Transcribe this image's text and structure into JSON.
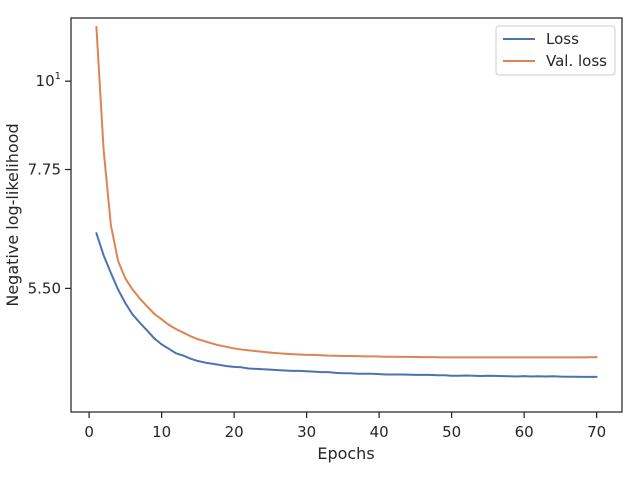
{
  "chart_data": {
    "type": "line",
    "xlabel": "Epochs",
    "ylabel": "Negative log-likelihood",
    "x_ticks": [
      0,
      10,
      20,
      30,
      40,
      50,
      60,
      70
    ],
    "x_tick_labels": [
      "0",
      "10",
      "20",
      "30",
      "40",
      "50",
      "60",
      "70"
    ],
    "xlim": [
      -2.5,
      73.5
    ],
    "yscale": "log",
    "ylim": [
      3.85,
      12.0
    ],
    "y_ticks": [
      5.5,
      7.75,
      10
    ],
    "y_tick_labels": [
      "5.50",
      "7.75",
      "10"
    ],
    "y_tick_sup": [
      "",
      "",
      "1"
    ],
    "grid": false,
    "legend_position": "top-right",
    "legend_entries": [
      "Loss",
      "Val. loss"
    ],
    "x": [
      1,
      2,
      3,
      4,
      5,
      6,
      7,
      8,
      9,
      10,
      11,
      12,
      13,
      14,
      15,
      16,
      17,
      18,
      19,
      20,
      21,
      22,
      23,
      24,
      25,
      26,
      27,
      28,
      29,
      30,
      31,
      32,
      33,
      34,
      35,
      36,
      37,
      38,
      39,
      40,
      41,
      42,
      43,
      44,
      45,
      46,
      47,
      48,
      49,
      50,
      51,
      52,
      53,
      54,
      55,
      56,
      57,
      58,
      59,
      60,
      61,
      62,
      63,
      64,
      65,
      66,
      67,
      68,
      69,
      70
    ],
    "series": [
      {
        "name": "Loss",
        "color": "#4c72b0",
        "values": [
          6.45,
          6.05,
          5.75,
          5.48,
          5.27,
          5.1,
          4.98,
          4.87,
          4.76,
          4.68,
          4.62,
          4.56,
          4.53,
          4.49,
          4.46,
          4.44,
          4.425,
          4.41,
          4.395,
          4.385,
          4.38,
          4.365,
          4.36,
          4.355,
          4.35,
          4.345,
          4.34,
          4.335,
          4.335,
          4.33,
          4.325,
          4.32,
          4.32,
          4.31,
          4.305,
          4.305,
          4.3,
          4.3,
          4.3,
          4.295,
          4.29,
          4.29,
          4.29,
          4.288,
          4.286,
          4.285,
          4.285,
          4.28,
          4.28,
          4.275,
          4.275,
          4.278,
          4.275,
          4.272,
          4.275,
          4.273,
          4.27,
          4.268,
          4.266,
          4.27,
          4.266,
          4.268,
          4.265,
          4.268,
          4.264,
          4.262,
          4.262,
          4.26,
          4.26,
          4.26
        ]
      },
      {
        "name": "Val. loss",
        "color": "#dd8452",
        "values": [
          11.7,
          8.2,
          6.6,
          5.95,
          5.66,
          5.48,
          5.34,
          5.22,
          5.11,
          5.03,
          4.95,
          4.89,
          4.84,
          4.79,
          4.75,
          4.72,
          4.69,
          4.665,
          4.645,
          4.625,
          4.61,
          4.6,
          4.59,
          4.58,
          4.57,
          4.562,
          4.555,
          4.55,
          4.545,
          4.54,
          4.54,
          4.535,
          4.53,
          4.528,
          4.525,
          4.525,
          4.523,
          4.52,
          4.52,
          4.518,
          4.516,
          4.515,
          4.514,
          4.513,
          4.512,
          4.511,
          4.51,
          4.509,
          4.508,
          4.508,
          4.508,
          4.508,
          4.508,
          4.508,
          4.508,
          4.508,
          4.508,
          4.508,
          4.508,
          4.508,
          4.508,
          4.508,
          4.508,
          4.508,
          4.508,
          4.508,
          4.508,
          4.508,
          4.509,
          4.51
        ]
      }
    ]
  }
}
